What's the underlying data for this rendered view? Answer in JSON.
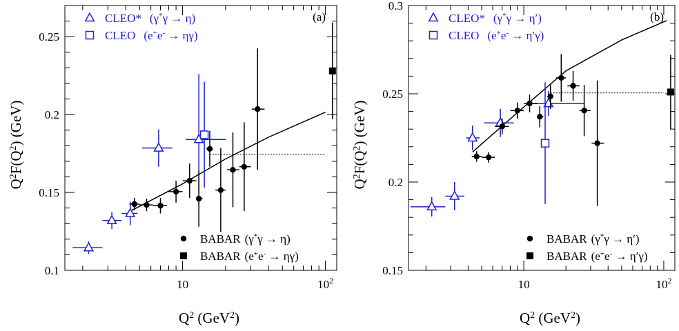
{
  "chart_data": [
    {
      "type": "scatter",
      "panel_label": "(a)",
      "xlabel": "Q^2 (GeV^2)",
      "ylabel": "Q^2F(Q^2) (GeV)",
      "xscale": "log",
      "xlim": [
        1.5,
        120
      ],
      "ylim": [
        0.1,
        0.27
      ],
      "x_ticks": [
        {
          "value": 10,
          "label": "10"
        },
        {
          "value": 100,
          "label": "10^2"
        }
      ],
      "y_ticks": [
        {
          "value": 0.1,
          "label": "0.1"
        },
        {
          "value": 0.15,
          "label": "0.15"
        },
        {
          "value": 0.2,
          "label": "0.2"
        },
        {
          "value": 0.25,
          "label": "0.25"
        }
      ],
      "legend_top": [
        {
          "marker": "open-triangle",
          "color": "#2020d0",
          "label": "CLEO*",
          "process": "(γ*γ → η)"
        },
        {
          "marker": "open-square",
          "color": "#2020d0",
          "label": "CLEO",
          "process": "(e+e- → ηγ)"
        }
      ],
      "legend_bottom": [
        {
          "marker": "filled-circle",
          "color": "#000000",
          "label": "BABAR",
          "process": "(γ*γ → η)"
        },
        {
          "marker": "filled-square",
          "color": "#000000",
          "label": "BABAR",
          "process": "(e+e- → ηγ)"
        }
      ],
      "series": [
        {
          "name": "CLEO* (γ*γ → η)",
          "marker": "open-triangle",
          "color": "#2020d0",
          "points": [
            {
              "x": 2.2,
              "y": 0.1145,
              "xlo": 1.7,
              "xhi": 2.75,
              "yerr": 0.004
            },
            {
              "x": 3.2,
              "y": 0.132,
              "xlo": 2.75,
              "xhi": 3.75,
              "yerr": 0.0055
            },
            {
              "x": 4.3,
              "y": 0.1365,
              "xlo": 3.75,
              "xhi": 4.85,
              "yerr": 0.0075
            },
            {
              "x": 6.8,
              "y": 0.1785,
              "xlo": 5.2,
              "xhi": 8.5,
              "yerr": 0.012
            },
            {
              "x": 13.0,
              "y": 0.184,
              "xlo": 10.5,
              "xhi": 20.0,
              "yerr": 0.042
            }
          ]
        },
        {
          "name": "CLEO (e+e- → ηγ)",
          "marker": "open-square",
          "color": "#2020d0",
          "points": [
            {
              "x": 14.2,
              "y": 0.187,
              "yerr": 0.034
            }
          ]
        },
        {
          "name": "BABAR (γ*γ → η)",
          "marker": "filled-circle",
          "color": "#000000",
          "points": [
            {
              "x": 4.6,
              "y": 0.1425,
              "xlo": 4.25,
              "xhi": 5.0,
              "yerr": 0.004
            },
            {
              "x": 5.6,
              "y": 0.142,
              "xlo": 5.0,
              "xhi": 6.2,
              "yerr": 0.004
            },
            {
              "x": 7.0,
              "y": 0.1415,
              "xlo": 6.2,
              "xhi": 7.8,
              "yerr": 0.005
            },
            {
              "x": 9.0,
              "y": 0.1505,
              "xlo": 8.0,
              "xhi": 10.0,
              "yerr": 0.007
            },
            {
              "x": 11.2,
              "y": 0.1575,
              "xlo": 10.0,
              "xhi": 12.5,
              "yerr": 0.011
            },
            {
              "x": 13.0,
              "y": 0.146,
              "xlo": 12.5,
              "xhi": 13.8,
              "yerr": 0.018
            },
            {
              "x": 15.5,
              "y": 0.178,
              "xlo": 14.7,
              "xhi": 16.3,
              "yerr": 0.0115
            },
            {
              "x": 18.5,
              "y": 0.1515,
              "xlo": 17.0,
              "xhi": 20.0,
              "yerr": 0.027
            },
            {
              "x": 22.5,
              "y": 0.1645,
              "xlo": 20.5,
              "xhi": 25.0,
              "yerr": 0.024
            },
            {
              "x": 27.0,
              "y": 0.1665,
              "xlo": 25.0,
              "xhi": 30.0,
              "yerr": 0.0285
            },
            {
              "x": 33.5,
              "y": 0.2035,
              "xlo": 30.5,
              "xhi": 37.5,
              "yerr": 0.039
            }
          ]
        },
        {
          "name": "BABAR (e+e- → ηγ)",
          "marker": "filled-square",
          "color": "#000000",
          "points": [
            {
              "x": 112,
              "y": 0.228,
              "yerr": 0.031
            }
          ]
        }
      ],
      "fit_line": [
        [
          4.2,
          0.1375
        ],
        [
          10,
          0.1555
        ],
        [
          20,
          0.1715
        ],
        [
          40,
          0.1855
        ],
        [
          100,
          0.2015
        ]
      ],
      "dashed_line": {
        "x": [
          15.5,
          100
        ],
        "y": 0.1745
      }
    },
    {
      "type": "scatter",
      "panel_label": "(b)",
      "xlabel": "Q^2 (GeV^2)",
      "ylabel": "Q^2F(Q^2) (GeV)",
      "xscale": "log",
      "xlim": [
        1.5,
        120
      ],
      "ylim": [
        0.15,
        0.3
      ],
      "x_ticks": [
        {
          "value": 10,
          "label": "10"
        },
        {
          "value": 100,
          "label": "10^2"
        }
      ],
      "y_ticks": [
        {
          "value": 0.15,
          "label": "0.15"
        },
        {
          "value": 0.2,
          "label": "0.2"
        },
        {
          "value": 0.25,
          "label": "0.25"
        },
        {
          "value": 0.3,
          "label": "0.3"
        }
      ],
      "legend_top": [
        {
          "marker": "open-triangle",
          "color": "#2020d0",
          "label": "CLEO*",
          "process": "(γ*γ → η′)"
        },
        {
          "marker": "open-square",
          "color": "#2020d0",
          "label": "CLEO",
          "process": "(e+e- → η′γ)"
        }
      ],
      "legend_bottom": [
        {
          "marker": "filled-circle",
          "color": "#000000",
          "label": "BABAR",
          "process": "(γ*γ → η′)"
        },
        {
          "marker": "filled-square",
          "color": "#000000",
          "label": "BABAR",
          "process": "(e+e- → η′γ)"
        }
      ],
      "series": [
        {
          "name": "CLEO* (γ*γ → η′)",
          "marker": "open-triangle",
          "color": "#2020d0",
          "points": [
            {
              "x": 2.2,
              "y": 0.186,
              "xlo": 1.55,
              "xhi": 2.75,
              "yerr": 0.0055
            },
            {
              "x": 3.2,
              "y": 0.192,
              "xlo": 2.75,
              "xhi": 3.75,
              "yerr": 0.008
            },
            {
              "x": 4.3,
              "y": 0.225,
              "xlo": 3.85,
              "xhi": 4.85,
              "yerr": 0.007
            },
            {
              "x": 6.8,
              "y": 0.2335,
              "xlo": 5.2,
              "xhi": 8.5,
              "yerr": 0.008
            },
            {
              "x": 15.0,
              "y": 0.2445,
              "xlo": 10.5,
              "xhi": 27.0,
              "yerr": 0.007
            }
          ]
        },
        {
          "name": "CLEO (e+e- → η′γ)",
          "marker": "open-square",
          "color": "#2020d0",
          "points": [
            {
              "x": 14.2,
              "y": 0.222,
              "yerr": 0.0345
            }
          ]
        },
        {
          "name": "BABAR (γ*γ → η′)",
          "marker": "filled-circle",
          "color": "#000000",
          "points": [
            {
              "x": 4.6,
              "y": 0.2145,
              "xlo": 4.25,
              "xhi": 5.0,
              "yerr": 0.003
            },
            {
              "x": 5.6,
              "y": 0.214,
              "xlo": 5.0,
              "xhi": 6.2,
              "yerr": 0.003
            },
            {
              "x": 7.0,
              "y": 0.2315,
              "xlo": 6.2,
              "xhi": 7.8,
              "yerr": 0.0045
            },
            {
              "x": 9.0,
              "y": 0.2405,
              "xlo": 8.0,
              "xhi": 10.0,
              "yerr": 0.0045
            },
            {
              "x": 11.0,
              "y": 0.2445,
              "xlo": 10.0,
              "xhi": 12.5,
              "yerr": 0.005
            },
            {
              "x": 13.0,
              "y": 0.237,
              "xlo": 12.5,
              "xhi": 13.8,
              "yerr": 0.006
            },
            {
              "x": 15.5,
              "y": 0.2485,
              "xlo": 14.7,
              "xhi": 16.3,
              "yerr": 0.007
            },
            {
              "x": 18.5,
              "y": 0.259,
              "xlo": 17.0,
              "xhi": 20.0,
              "yerr": 0.0135
            },
            {
              "x": 22.5,
              "y": 0.2545,
              "xlo": 20.5,
              "xhi": 25.0,
              "yerr": 0.0085
            },
            {
              "x": 27.0,
              "y": 0.2405,
              "xlo": 25.0,
              "xhi": 30.0,
              "yerr": 0.0145
            },
            {
              "x": 33.5,
              "y": 0.222,
              "xlo": 30.5,
              "xhi": 37.5,
              "yerr": 0.0355
            }
          ]
        },
        {
          "name": "BABAR (e+e- → η′γ)",
          "marker": "filled-square",
          "color": "#000000",
          "points": [
            {
              "x": 112,
              "y": 0.251,
              "yerr": 0.021
            }
          ]
        }
      ],
      "fit_line": [
        [
          4.3,
          0.217
        ],
        [
          10,
          0.2425
        ],
        [
          20,
          0.263
        ],
        [
          50,
          0.2805
        ],
        [
          105,
          0.2915
        ]
      ],
      "dashed_line": {
        "x": [
          15.5,
          100
        ],
        "y": 0.2505
      }
    }
  ]
}
